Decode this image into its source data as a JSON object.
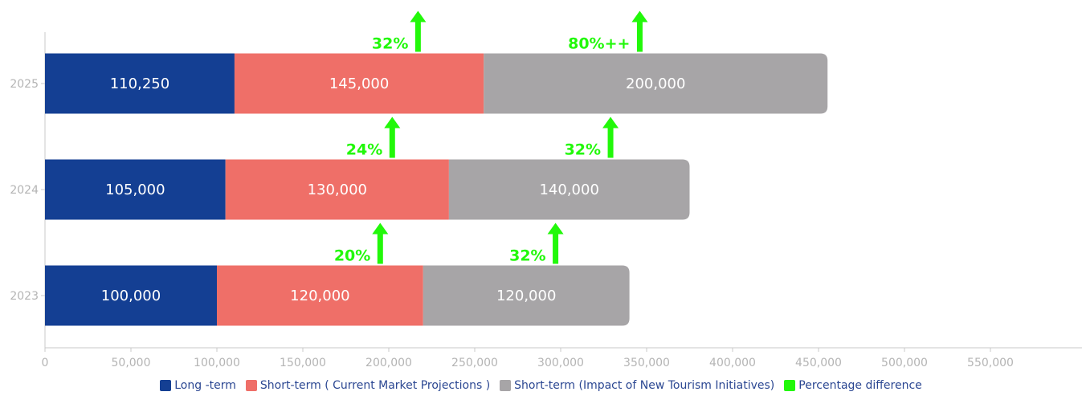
{
  "chart_data": {
    "type": "bar",
    "orientation": "horizontal",
    "stacked": true,
    "categories": [
      "2023",
      "2024",
      "2025"
    ],
    "series": [
      {
        "name": "Long -term",
        "color": "#143f93",
        "values": [
          100000,
          105000,
          110250
        ],
        "labels": [
          "100,000",
          "105,000",
          "110,250"
        ]
      },
      {
        "name": "Short-term ( Current Market Projections )",
        "color": "#ef6f68",
        "values": [
          120000,
          130000,
          145000
        ],
        "labels": [
          "120,000",
          "130,000",
          "145,000"
        ]
      },
      {
        "name": "Short-term (Impact of New Tourism Initiatives)",
        "color": "#a7a5a7",
        "values": [
          120000,
          140000,
          200000
        ],
        "labels": [
          "120,000",
          "140,000",
          "200,000"
        ]
      }
    ],
    "percentage_series": {
      "name": "Percentage difference",
      "color": "#22f80a"
    },
    "annotations": [
      {
        "category": "2023",
        "x": 195000,
        "text": "20%"
      },
      {
        "category": "2023",
        "x": 297000,
        "text": "32%"
      },
      {
        "category": "2024",
        "x": 202000,
        "text": "24%"
      },
      {
        "category": "2024",
        "x": 329000,
        "text": "32%"
      },
      {
        "category": "2025",
        "x": 217000,
        "text": "32%"
      },
      {
        "category": "2025",
        "x": 346000,
        "text": "80%++"
      }
    ],
    "xticks": [
      0,
      50000,
      100000,
      150000,
      200000,
      250000,
      300000,
      350000,
      400000,
      450000,
      500000,
      550000
    ],
    "xtick_labels": [
      "0",
      "50,000",
      "100,000",
      "150,000",
      "200,000",
      "250,000",
      "300,000",
      "350,000",
      "400,000",
      "450,000",
      "500,000",
      "550,000"
    ],
    "xlim": [
      0,
      600000
    ],
    "title": "",
    "xlabel": "",
    "ylabel": "",
    "grid": false,
    "legend_position": "bottom-center"
  }
}
